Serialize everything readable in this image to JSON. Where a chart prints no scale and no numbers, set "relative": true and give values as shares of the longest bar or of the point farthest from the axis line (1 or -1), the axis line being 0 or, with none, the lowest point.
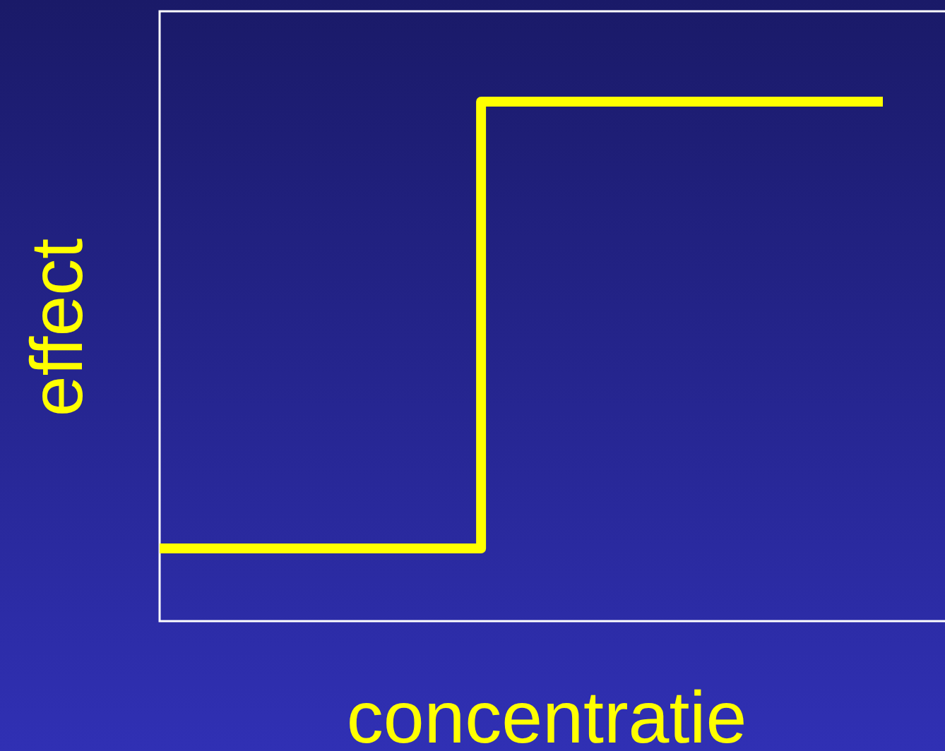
{
  "chart_data": {
    "type": "step",
    "relative": true,
    "xlabel": "concentratie",
    "ylabel": "effect",
    "categories": [
      null,
      null,
      null,
      null,
      null,
      null,
      null,
      null,
      null,
      null
    ],
    "series": [
      {
        "color": "#ffff00",
        "values": [
          0.14,
          0.14,
          0.14,
          0.14,
          1,
          1,
          1,
          1,
          1,
          1
        ]
      }
    ]
  }
}
